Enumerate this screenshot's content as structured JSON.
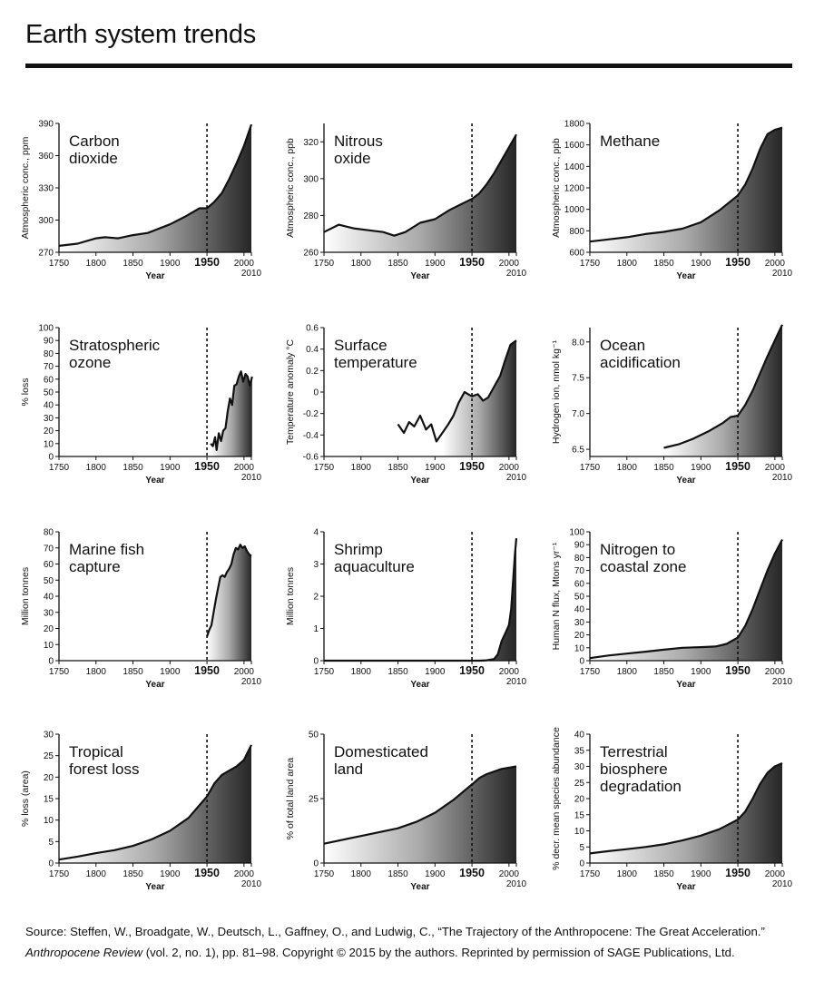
{
  "header": {
    "title": "Earth system trends"
  },
  "source": {
    "line1": "Source: Steffen, W., Broadgate, W., Deutsch, L., Gaffney, O., and Ludwig, C., “The Trajectory of the Anthropocene: The Great Acceleration.”",
    "journal": "Anthropocene Review",
    "line2_rest": " (vol. 2, no. 1), pp. 81–98. Copyright © 2015 by the authors. Reprinted by permission of SAGE Publications, Ltd."
  },
  "colors": {
    "ink": "#111111",
    "fill_dark": "#2a2a2a",
    "fill_light": "#ffffff"
  },
  "chart_data": [
    {
      "type": "area",
      "title_lines": [
        "Carbon",
        "dioxide"
      ],
      "ylabel": "Atmospheric conc., ppm",
      "xlabel": "Year",
      "xlim": [
        1750,
        2010
      ],
      "ylim": [
        270,
        390
      ],
      "yticks": [
        270,
        300,
        330,
        360,
        390
      ],
      "xticks": [
        1750,
        1800,
        1850,
        1900,
        1950,
        2000
      ],
      "marker_year": 1950,
      "end_label": "2010",
      "fill": true,
      "x": [
        1750,
        1775,
        1800,
        1812,
        1830,
        1850,
        1870,
        1900,
        1920,
        1940,
        1950,
        1960,
        1970,
        1980,
        1990,
        2000,
        2010
      ],
      "y": [
        276,
        278,
        283,
        284,
        283,
        286,
        288,
        296,
        303,
        311,
        311,
        317,
        325,
        338,
        353,
        369,
        389
      ]
    },
    {
      "type": "area",
      "title_lines": [
        "Nitrous",
        "oxide"
      ],
      "ylabel": "Atmospheric conc., ppb",
      "xlabel": "Year",
      "xlim": [
        1750,
        2010
      ],
      "ylim": [
        260,
        330
      ],
      "yticks": [
        260,
        280,
        300,
        320
      ],
      "xticks": [
        1750,
        1800,
        1850,
        1900,
        1950,
        2000
      ],
      "marker_year": 1950,
      "end_label": "2010",
      "fill": true,
      "x": [
        1750,
        1770,
        1790,
        1810,
        1830,
        1845,
        1860,
        1880,
        1900,
        1920,
        1940,
        1950,
        1960,
        1970,
        1980,
        1990,
        2000,
        2010
      ],
      "y": [
        271,
        275,
        273,
        272,
        271,
        269,
        271,
        276,
        278,
        283,
        287,
        289,
        292,
        297,
        303,
        310,
        317,
        324
      ]
    },
    {
      "type": "area",
      "title_lines": [
        "Methane"
      ],
      "ylabel": "Atmospheric conc., ppb",
      "xlabel": "Year",
      "xlim": [
        1750,
        2010
      ],
      "ylim": [
        600,
        1800
      ],
      "yticks": [
        600,
        800,
        1000,
        1200,
        1400,
        1600,
        1800
      ],
      "xticks": [
        1750,
        1800,
        1850,
        1900,
        1950,
        2000
      ],
      "marker_year": 1950,
      "end_label": "2010",
      "fill": true,
      "x": [
        1750,
        1775,
        1800,
        1825,
        1850,
        1875,
        1900,
        1925,
        1950,
        1960,
        1970,
        1980,
        1990,
        2000,
        2010
      ],
      "y": [
        700,
        720,
        740,
        770,
        790,
        820,
        880,
        990,
        1130,
        1230,
        1380,
        1560,
        1700,
        1740,
        1760
      ]
    },
    {
      "type": "area",
      "title_lines": [
        "Stratospheric",
        "ozone"
      ],
      "ylabel": "% loss",
      "xlabel": "Year",
      "xlim": [
        1750,
        2010
      ],
      "ylim": [
        0,
        100
      ],
      "yticks": [
        0,
        10,
        20,
        30,
        40,
        50,
        60,
        70,
        80,
        90,
        100
      ],
      "xticks": [
        1750,
        1800,
        1850,
        1900,
        1950,
        2000
      ],
      "marker_year": 1950,
      "end_label": "2010",
      "fill": true,
      "x": [
        1955,
        1958,
        1961,
        1963,
        1966,
        1969,
        1972,
        1975,
        1978,
        1981,
        1984,
        1987,
        1990,
        1993,
        1996,
        1999,
        2002,
        2005,
        2008,
        2011
      ],
      "y": [
        10,
        8,
        15,
        5,
        18,
        12,
        20,
        22,
        35,
        45,
        40,
        55,
        56,
        62,
        66,
        58,
        64,
        62,
        55,
        62
      ]
    },
    {
      "type": "line",
      "title_lines": [
        "Surface",
        "temperature"
      ],
      "ylabel": "Temperature anomaly °C",
      "xlabel": "Year",
      "xlim": [
        1750,
        2010
      ],
      "ylim": [
        -0.6,
        0.6
      ],
      "yticks": [
        -0.6,
        -0.4,
        -0.2,
        0,
        0.2,
        0.4,
        0.6
      ],
      "xticks": [
        1750,
        1800,
        1850,
        1900,
        1950,
        2000
      ],
      "marker_year": 1950,
      "end_label": "2010",
      "fill": true,
      "x": [
        1850,
        1858,
        1865,
        1872,
        1880,
        1888,
        1895,
        1902,
        1910,
        1918,
        1925,
        1932,
        1940,
        1945,
        1950,
        1958,
        1965,
        1972,
        1980,
        1988,
        1995,
        2002,
        2010
      ],
      "y": [
        -0.3,
        -0.38,
        -0.28,
        -0.32,
        -0.22,
        -0.35,
        -0.3,
        -0.46,
        -0.38,
        -0.3,
        -0.22,
        -0.1,
        0.0,
        -0.02,
        -0.04,
        -0.02,
        -0.08,
        -0.05,
        0.05,
        0.15,
        0.3,
        0.44,
        0.48
      ],
      "fill_from_year": 1905
    },
    {
      "type": "area",
      "title_lines": [
        "Ocean",
        "acidification"
      ],
      "ylabel": "Hydrogen ion, nmol kg⁻¹",
      "xlabel": "Year",
      "xlim": [
        1750,
        2010
      ],
      "ylim": [
        6.4,
        8.2
      ],
      "yticks": [
        6.5,
        7.0,
        7.5,
        8.0
      ],
      "ytick_labels": [
        "6.5",
        "7.0",
        "7.5",
        "8.0"
      ],
      "xticks": [
        1750,
        1800,
        1850,
        1900,
        1950,
        2000
      ],
      "marker_year": 1950,
      "end_label": "2010",
      "fill": true,
      "x": [
        1850,
        1870,
        1890,
        1910,
        1930,
        1940,
        1950,
        1960,
        1970,
        1980,
        1990,
        2000,
        2010
      ],
      "y": [
        6.52,
        6.57,
        6.65,
        6.75,
        6.87,
        6.95,
        6.97,
        7.12,
        7.32,
        7.56,
        7.8,
        8.02,
        8.24
      ]
    },
    {
      "type": "area",
      "title_lines": [
        "Marine fish",
        "capture"
      ],
      "ylabel": "Million tonnes",
      "xlabel": "Year",
      "xlim": [
        1750,
        2010
      ],
      "ylim": [
        0,
        80
      ],
      "yticks": [
        0,
        10,
        20,
        30,
        40,
        50,
        60,
        70,
        80
      ],
      "xticks": [
        1750,
        1800,
        1850,
        1900,
        1950,
        2000
      ],
      "marker_year": 1950,
      "end_label": "2010",
      "fill": true,
      "x": [
        1950,
        1953,
        1956,
        1959,
        1962,
        1965,
        1968,
        1971,
        1974,
        1977,
        1980,
        1983,
        1986,
        1989,
        1992,
        1995,
        1998,
        2001,
        2004,
        2007,
        2010
      ],
      "y": [
        15,
        19,
        22,
        30,
        38,
        45,
        52,
        53,
        52,
        55,
        57,
        60,
        66,
        70,
        69,
        72,
        70,
        71,
        68,
        66,
        65
      ]
    },
    {
      "type": "area",
      "title_lines": [
        "Shrimp",
        "aquaculture"
      ],
      "ylabel": "Million tonnes",
      "xlabel": "Year",
      "xlim": [
        1750,
        2010
      ],
      "ylim": [
        0,
        4
      ],
      "yticks": [
        0,
        1,
        2,
        3,
        4
      ],
      "xticks": [
        1750,
        1800,
        1850,
        1900,
        1950,
        2000
      ],
      "marker_year": 1950,
      "end_label": "2010",
      "fill": true,
      "x": [
        1750,
        1960,
        1970,
        1980,
        1985,
        1990,
        1995,
        2000,
        2003,
        2006,
        2008,
        2010
      ],
      "y": [
        0,
        0,
        0.01,
        0.05,
        0.2,
        0.6,
        0.85,
        1.1,
        1.6,
        2.6,
        3.3,
        3.8
      ]
    },
    {
      "type": "area",
      "title_lines": [
        "Nitrogen to",
        "coastal zone"
      ],
      "ylabel": "Human N flux, Mtons yr⁻¹",
      "xlabel": "Year",
      "xlim": [
        1750,
        2010
      ],
      "ylim": [
        0,
        100
      ],
      "yticks": [
        0,
        10,
        20,
        30,
        40,
        50,
        60,
        70,
        80,
        90,
        100
      ],
      "xticks": [
        1750,
        1800,
        1850,
        1900,
        1950,
        2000
      ],
      "marker_year": 1950,
      "end_label": "2010",
      "fill": true,
      "x": [
        1750,
        1775,
        1800,
        1825,
        1850,
        1875,
        1900,
        1920,
        1935,
        1950,
        1960,
        1970,
        1980,
        1990,
        2000,
        2010
      ],
      "y": [
        2,
        4,
        5.5,
        7,
        8.5,
        10,
        10.5,
        11,
        13,
        18,
        27,
        40,
        55,
        70,
        83,
        94
      ]
    },
    {
      "type": "area",
      "title_lines": [
        "Tropical",
        "forest loss"
      ],
      "ylabel": "% loss (area)",
      "xlabel": "Year",
      "xlim": [
        1750,
        2010
      ],
      "ylim": [
        0,
        30
      ],
      "yticks": [
        0,
        5,
        10,
        15,
        20,
        25,
        30
      ],
      "xticks": [
        1750,
        1800,
        1850,
        1900,
        1950,
        2000
      ],
      "marker_year": 1950,
      "end_label": "2010",
      "fill": true,
      "x": [
        1750,
        1775,
        1800,
        1825,
        1850,
        1875,
        1900,
        1925,
        1950,
        1960,
        1970,
        1980,
        1990,
        2000,
        2010
      ],
      "y": [
        0.8,
        1.5,
        2.3,
        3.0,
        4.0,
        5.5,
        7.5,
        10.5,
        15.5,
        18.5,
        20.5,
        21.5,
        22.5,
        24,
        27.5
      ]
    },
    {
      "type": "area",
      "title_lines": [
        "Domesticated",
        "land"
      ],
      "ylabel": "% of total land area",
      "xlabel": "Year",
      "xlim": [
        1750,
        2010
      ],
      "ylim": [
        0,
        50
      ],
      "yticks": [
        0,
        25,
        50
      ],
      "xticks": [
        1750,
        1800,
        1850,
        1900,
        1950,
        2000
      ],
      "marker_year": 1950,
      "end_label": "2010",
      "fill": true,
      "x": [
        1750,
        1775,
        1800,
        1825,
        1850,
        1875,
        1900,
        1925,
        1950,
        1960,
        1970,
        1980,
        1990,
        2000,
        2010
      ],
      "y": [
        7.5,
        9,
        10.5,
        12,
        13.5,
        16,
        19.5,
        24.5,
        30.5,
        33,
        34.5,
        35.5,
        36.5,
        37,
        37.5
      ]
    },
    {
      "type": "area",
      "title_lines": [
        "Terrestrial",
        "biosphere",
        "degradation"
      ],
      "ylabel": "% decr. mean species abundance",
      "xlabel": "Year",
      "xlim": [
        1750,
        2010
      ],
      "ylim": [
        0,
        40
      ],
      "yticks": [
        0,
        5,
        10,
        15,
        20,
        25,
        30,
        35,
        40
      ],
      "xticks": [
        1750,
        1800,
        1850,
        1900,
        1950,
        2000
      ],
      "marker_year": 1950,
      "end_label": "2010",
      "fill": true,
      "x": [
        1750,
        1775,
        1800,
        1825,
        1850,
        1875,
        1900,
        1925,
        1950,
        1960,
        1970,
        1980,
        1990,
        2000,
        2010
      ],
      "y": [
        3,
        3.7,
        4.3,
        5,
        5.8,
        7,
        8.5,
        10.5,
        13.5,
        16,
        20,
        24.5,
        28,
        30,
        31
      ]
    }
  ]
}
